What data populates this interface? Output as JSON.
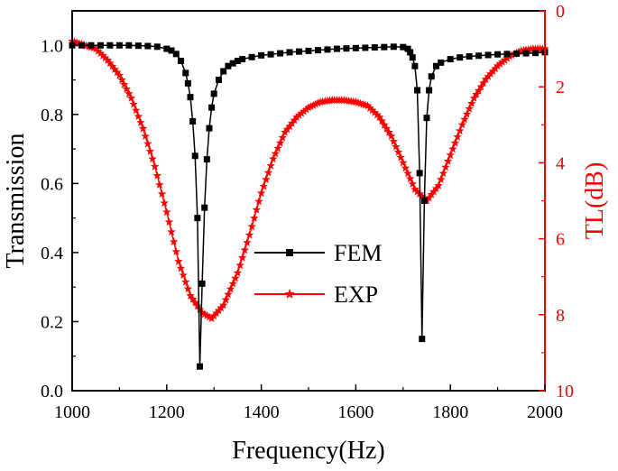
{
  "chart_data": {
    "type": "line",
    "xlabel": "Frequency(Hz)",
    "ylabel": "Transmission",
    "y2label": "TL(dB)",
    "xlim": [
      1000,
      2000
    ],
    "ylim": [
      0.0,
      1.1
    ],
    "y2lim": [
      0,
      10
    ],
    "y2_inverted": true,
    "x_ticks": [
      1000,
      1200,
      1400,
      1600,
      1800,
      2000
    ],
    "y_ticks": [
      0.0,
      0.2,
      0.4,
      0.6,
      0.8,
      1.0
    ],
    "y_tick_labels": [
      "0.0",
      "0.2",
      "0.4",
      "0.6",
      "0.8",
      "1.0"
    ],
    "y2_ticks": [
      0,
      2,
      4,
      6,
      8,
      10
    ],
    "grid": false,
    "legend_placement": "center",
    "colors": {
      "fem": "#000000",
      "exp": "#ff0000",
      "right_axis": "#ff0000"
    },
    "series": [
      {
        "name": "FEM",
        "axis": "left",
        "marker": "square",
        "x": [
          1000,
          1020,
          1040,
          1060,
          1080,
          1100,
          1120,
          1140,
          1160,
          1180,
          1200,
          1210,
          1220,
          1230,
          1240,
          1245,
          1250,
          1255,
          1260,
          1265,
          1270,
          1275,
          1280,
          1285,
          1290,
          1295,
          1300,
          1310,
          1320,
          1330,
          1340,
          1350,
          1360,
          1380,
          1400,
          1420,
          1440,
          1460,
          1480,
          1500,
          1520,
          1540,
          1560,
          1580,
          1600,
          1620,
          1640,
          1660,
          1680,
          1700,
          1710,
          1715,
          1720,
          1725,
          1730,
          1735,
          1740,
          1745,
          1750,
          1755,
          1760,
          1770,
          1780,
          1800,
          1820,
          1840,
          1860,
          1880,
          1900,
          1920,
          1940,
          1960,
          1980,
          2000
        ],
        "values": [
          1.0,
          1.0,
          1.0,
          1.0,
          1.0,
          1.0,
          1.0,
          0.999,
          0.998,
          0.996,
          0.99,
          0.985,
          0.975,
          0.955,
          0.92,
          0.89,
          0.85,
          0.78,
          0.68,
          0.5,
          0.07,
          0.31,
          0.53,
          0.67,
          0.76,
          0.82,
          0.86,
          0.9,
          0.925,
          0.94,
          0.948,
          0.955,
          0.96,
          0.966,
          0.971,
          0.974,
          0.977,
          0.98,
          0.982,
          0.984,
          0.986,
          0.988,
          0.99,
          0.991,
          0.992,
          0.993,
          0.994,
          0.995,
          0.996,
          0.995,
          0.99,
          0.98,
          0.965,
          0.94,
          0.87,
          0.63,
          0.15,
          0.55,
          0.79,
          0.87,
          0.91,
          0.94,
          0.95,
          0.96,
          0.965,
          0.968,
          0.97,
          0.972,
          0.974,
          0.975,
          0.976,
          0.977,
          0.978,
          0.98
        ]
      },
      {
        "name": "EXP",
        "axis": "right",
        "marker": "star",
        "x": [
          1000,
          1025,
          1050,
          1075,
          1100,
          1125,
          1150,
          1175,
          1200,
          1225,
          1250,
          1275,
          1295,
          1320,
          1350,
          1375,
          1400,
          1425,
          1450,
          1475,
          1500,
          1525,
          1550,
          1575,
          1600,
          1625,
          1650,
          1675,
          1700,
          1725,
          1750,
          1775,
          1800,
          1825,
          1850,
          1875,
          1900,
          1925,
          1950,
          1975,
          2000
        ],
        "values": [
          0.8,
          0.9,
          1.0,
          1.3,
          1.7,
          2.3,
          3.1,
          4.1,
          5.3,
          6.6,
          7.5,
          7.95,
          8.1,
          7.75,
          6.9,
          5.9,
          4.8,
          3.9,
          3.2,
          2.8,
          2.55,
          2.4,
          2.35,
          2.35,
          2.4,
          2.5,
          2.8,
          3.3,
          4.0,
          4.7,
          5.0,
          4.6,
          3.8,
          3.0,
          2.3,
          1.8,
          1.45,
          1.2,
          1.05,
          1.0,
          1.0
        ]
      }
    ]
  }
}
